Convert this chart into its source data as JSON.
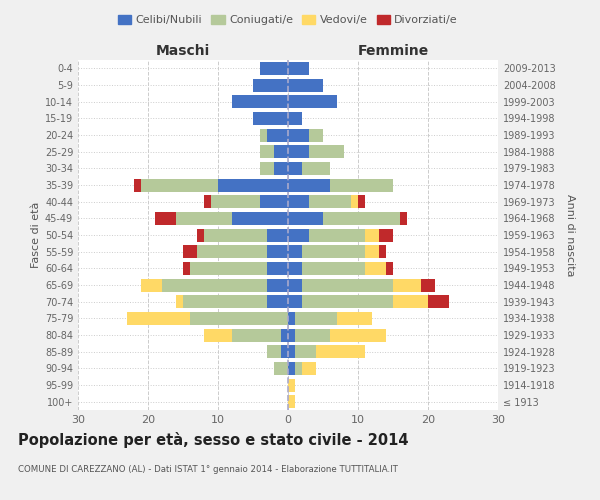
{
  "age_groups": [
    "100+",
    "95-99",
    "90-94",
    "85-89",
    "80-84",
    "75-79",
    "70-74",
    "65-69",
    "60-64",
    "55-59",
    "50-54",
    "45-49",
    "40-44",
    "35-39",
    "30-34",
    "25-29",
    "20-24",
    "15-19",
    "10-14",
    "5-9",
    "0-4"
  ],
  "birth_years": [
    "≤ 1913",
    "1914-1918",
    "1919-1923",
    "1924-1928",
    "1929-1933",
    "1934-1938",
    "1939-1943",
    "1944-1948",
    "1949-1953",
    "1954-1958",
    "1959-1963",
    "1964-1968",
    "1969-1973",
    "1974-1978",
    "1979-1983",
    "1984-1988",
    "1989-1993",
    "1994-1998",
    "1999-2003",
    "2004-2008",
    "2009-2013"
  ],
  "male": {
    "celibi": [
      0,
      0,
      0,
      1,
      1,
      0,
      3,
      3,
      3,
      3,
      3,
      8,
      4,
      10,
      2,
      2,
      3,
      5,
      8,
      5,
      4
    ],
    "coniugati": [
      0,
      0,
      2,
      2,
      7,
      14,
      12,
      15,
      11,
      10,
      9,
      8,
      7,
      11,
      2,
      2,
      1,
      0,
      0,
      0,
      0
    ],
    "vedovi": [
      0,
      0,
      0,
      0,
      4,
      9,
      1,
      3,
      0,
      0,
      0,
      0,
      0,
      0,
      0,
      0,
      0,
      0,
      0,
      0,
      0
    ],
    "divorziati": [
      0,
      0,
      0,
      0,
      0,
      0,
      0,
      0,
      1,
      2,
      1,
      3,
      1,
      1,
      0,
      0,
      0,
      0,
      0,
      0,
      0
    ]
  },
  "female": {
    "nubili": [
      0,
      0,
      1,
      1,
      1,
      1,
      2,
      2,
      2,
      2,
      3,
      5,
      3,
      6,
      2,
      3,
      3,
      2,
      7,
      5,
      3
    ],
    "coniugate": [
      0,
      0,
      1,
      3,
      5,
      6,
      13,
      13,
      9,
      9,
      8,
      11,
      6,
      9,
      4,
      5,
      2,
      0,
      0,
      0,
      0
    ],
    "vedove": [
      1,
      1,
      2,
      7,
      8,
      5,
      5,
      4,
      3,
      2,
      2,
      0,
      1,
      0,
      0,
      0,
      0,
      0,
      0,
      0,
      0
    ],
    "divorziate": [
      0,
      0,
      0,
      0,
      0,
      0,
      3,
      2,
      1,
      1,
      2,
      1,
      1,
      0,
      0,
      0,
      0,
      0,
      0,
      0,
      0
    ]
  },
  "colors": {
    "celibi": "#4472c4",
    "coniugati": "#b5c99a",
    "vedovi": "#ffd966",
    "divorziati": "#c0292b"
  },
  "title": "Popolazione per età, sesso e stato civile - 2014",
  "subtitle": "COMUNE DI CAREZZANO (AL) - Dati ISTAT 1° gennaio 2014 - Elaborazione TUTTITALIA.IT",
  "xlabel_left": "Maschi",
  "xlabel_right": "Femmine",
  "ylabel_left": "Fasce di età",
  "ylabel_right": "Anni di nascita",
  "xlim": 30,
  "bg_color": "#f0f0f0",
  "bar_bg_color": "#ffffff"
}
